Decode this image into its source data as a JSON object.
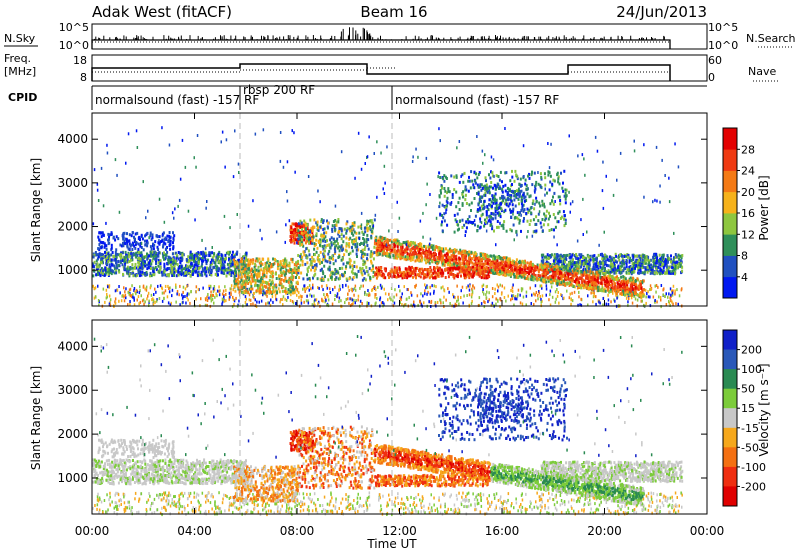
{
  "header": {
    "title": "Adak West (fitACF)",
    "beam": "Beam 16",
    "date": "24/Jun/2013"
  },
  "top_panels": {
    "nsky_label": "N.Sky",
    "nsky_ticks": [
      "10^5",
      "10^0"
    ],
    "nsearch_label": "N.Search",
    "freq_label_1": "Freq.",
    "freq_label_2": "[MHz]",
    "freq_ticks": [
      "18",
      "8"
    ],
    "nave_label": "Nave",
    "nave_ticks": [
      "60",
      "0"
    ],
    "cpid_label": "CPID",
    "cpid_segments": [
      {
        "label": "normalsound (fast) -157 RF",
        "start_hour": 0,
        "end_hour": 6
      },
      {
        "label": "rbsp 200 RF",
        "start_hour": 6,
        "end_hour": 12
      },
      {
        "label": "normalsound (fast) -157 RF",
        "start_hour": 12,
        "end_hour": 23
      }
    ]
  },
  "chart_data": [
    {
      "type": "heatmap",
      "panel": "power",
      "ylabel": "Slant Range [km]",
      "yticks": [
        "1000",
        "2000",
        "3000",
        "4000"
      ],
      "ylim": [
        180,
        4600
      ],
      "colorbar": {
        "label": "Power [dB]",
        "ticks": [
          "4",
          "8",
          "12",
          "16",
          "20",
          "24",
          "28"
        ],
        "colors": [
          "#0018f0",
          "#2050c0",
          "#2f8f5a",
          "#8ec63f",
          "#f6b21b",
          "#f47a15",
          "#ef3a12",
          "#e30000"
        ]
      }
    },
    {
      "type": "heatmap",
      "panel": "velocity",
      "ylabel": "Slant Range [km]",
      "yticks": [
        "1000",
        "2000",
        "3000",
        "4000"
      ],
      "ylim": [
        180,
        4600
      ],
      "colorbar": {
        "label": "Velocity [m s⁻¹]",
        "ticks": [
          "200",
          "100",
          "50",
          "15",
          "-15",
          "-50",
          "-100",
          "-200"
        ],
        "colors": [
          "#1020c8",
          "#2a58b8",
          "#2a8a52",
          "#7ccc3a",
          "#c8c8c8",
          "#f6a81c",
          "#f47012",
          "#ef2e10",
          "#e00000"
        ]
      }
    }
  ],
  "xaxis": {
    "label": "Time UT",
    "ticks": [
      "00:00",
      "04:00",
      "08:00",
      "12:00",
      "16:00",
      "20:00",
      "00:00"
    ],
    "xlim_hours": [
      0,
      24
    ]
  }
}
